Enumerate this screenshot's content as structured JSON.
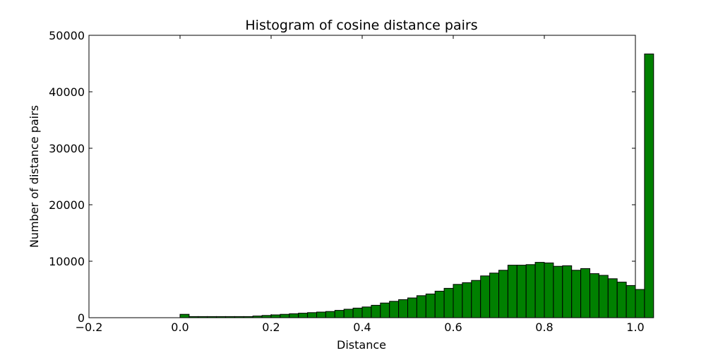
{
  "chart_data": {
    "type": "bar",
    "title": "Histogram of cosine distance pairs",
    "xlabel": "Distance",
    "ylabel": "Number of distance pairs",
    "xlim": [
      -0.2,
      1.0
    ],
    "ylim": [
      0,
      50000
    ],
    "xticks": [
      -0.2,
      0.0,
      0.2,
      0.4,
      0.6,
      0.8,
      1.0
    ],
    "xtick_labels": [
      "−0.2",
      "0.0",
      "0.2",
      "0.4",
      "0.6",
      "0.8",
      "1.0"
    ],
    "yticks": [
      0,
      10000,
      20000,
      30000,
      40000,
      50000
    ],
    "ytick_labels": [
      "0",
      "10000",
      "20000",
      "30000",
      "40000",
      "50000"
    ],
    "grid": false,
    "bar_color": "#008000",
    "bin_start": 0.0,
    "bin_width": 0.02,
    "values": [
      600,
      200,
      200,
      200,
      200,
      200,
      200,
      200,
      300,
      400,
      500,
      600,
      700,
      800,
      900,
      1000,
      1100,
      1300,
      1500,
      1700,
      1900,
      2200,
      2600,
      2900,
      3200,
      3500,
      3900,
      4200,
      4700,
      5200,
      5900,
      6200,
      6600,
      7400,
      7900,
      8400,
      9300,
      9300,
      9400,
      9800,
      9700,
      9100,
      9200,
      8400,
      8700,
      7800,
      7500,
      6900,
      6300,
      5700,
      5000,
      46700
    ]
  }
}
